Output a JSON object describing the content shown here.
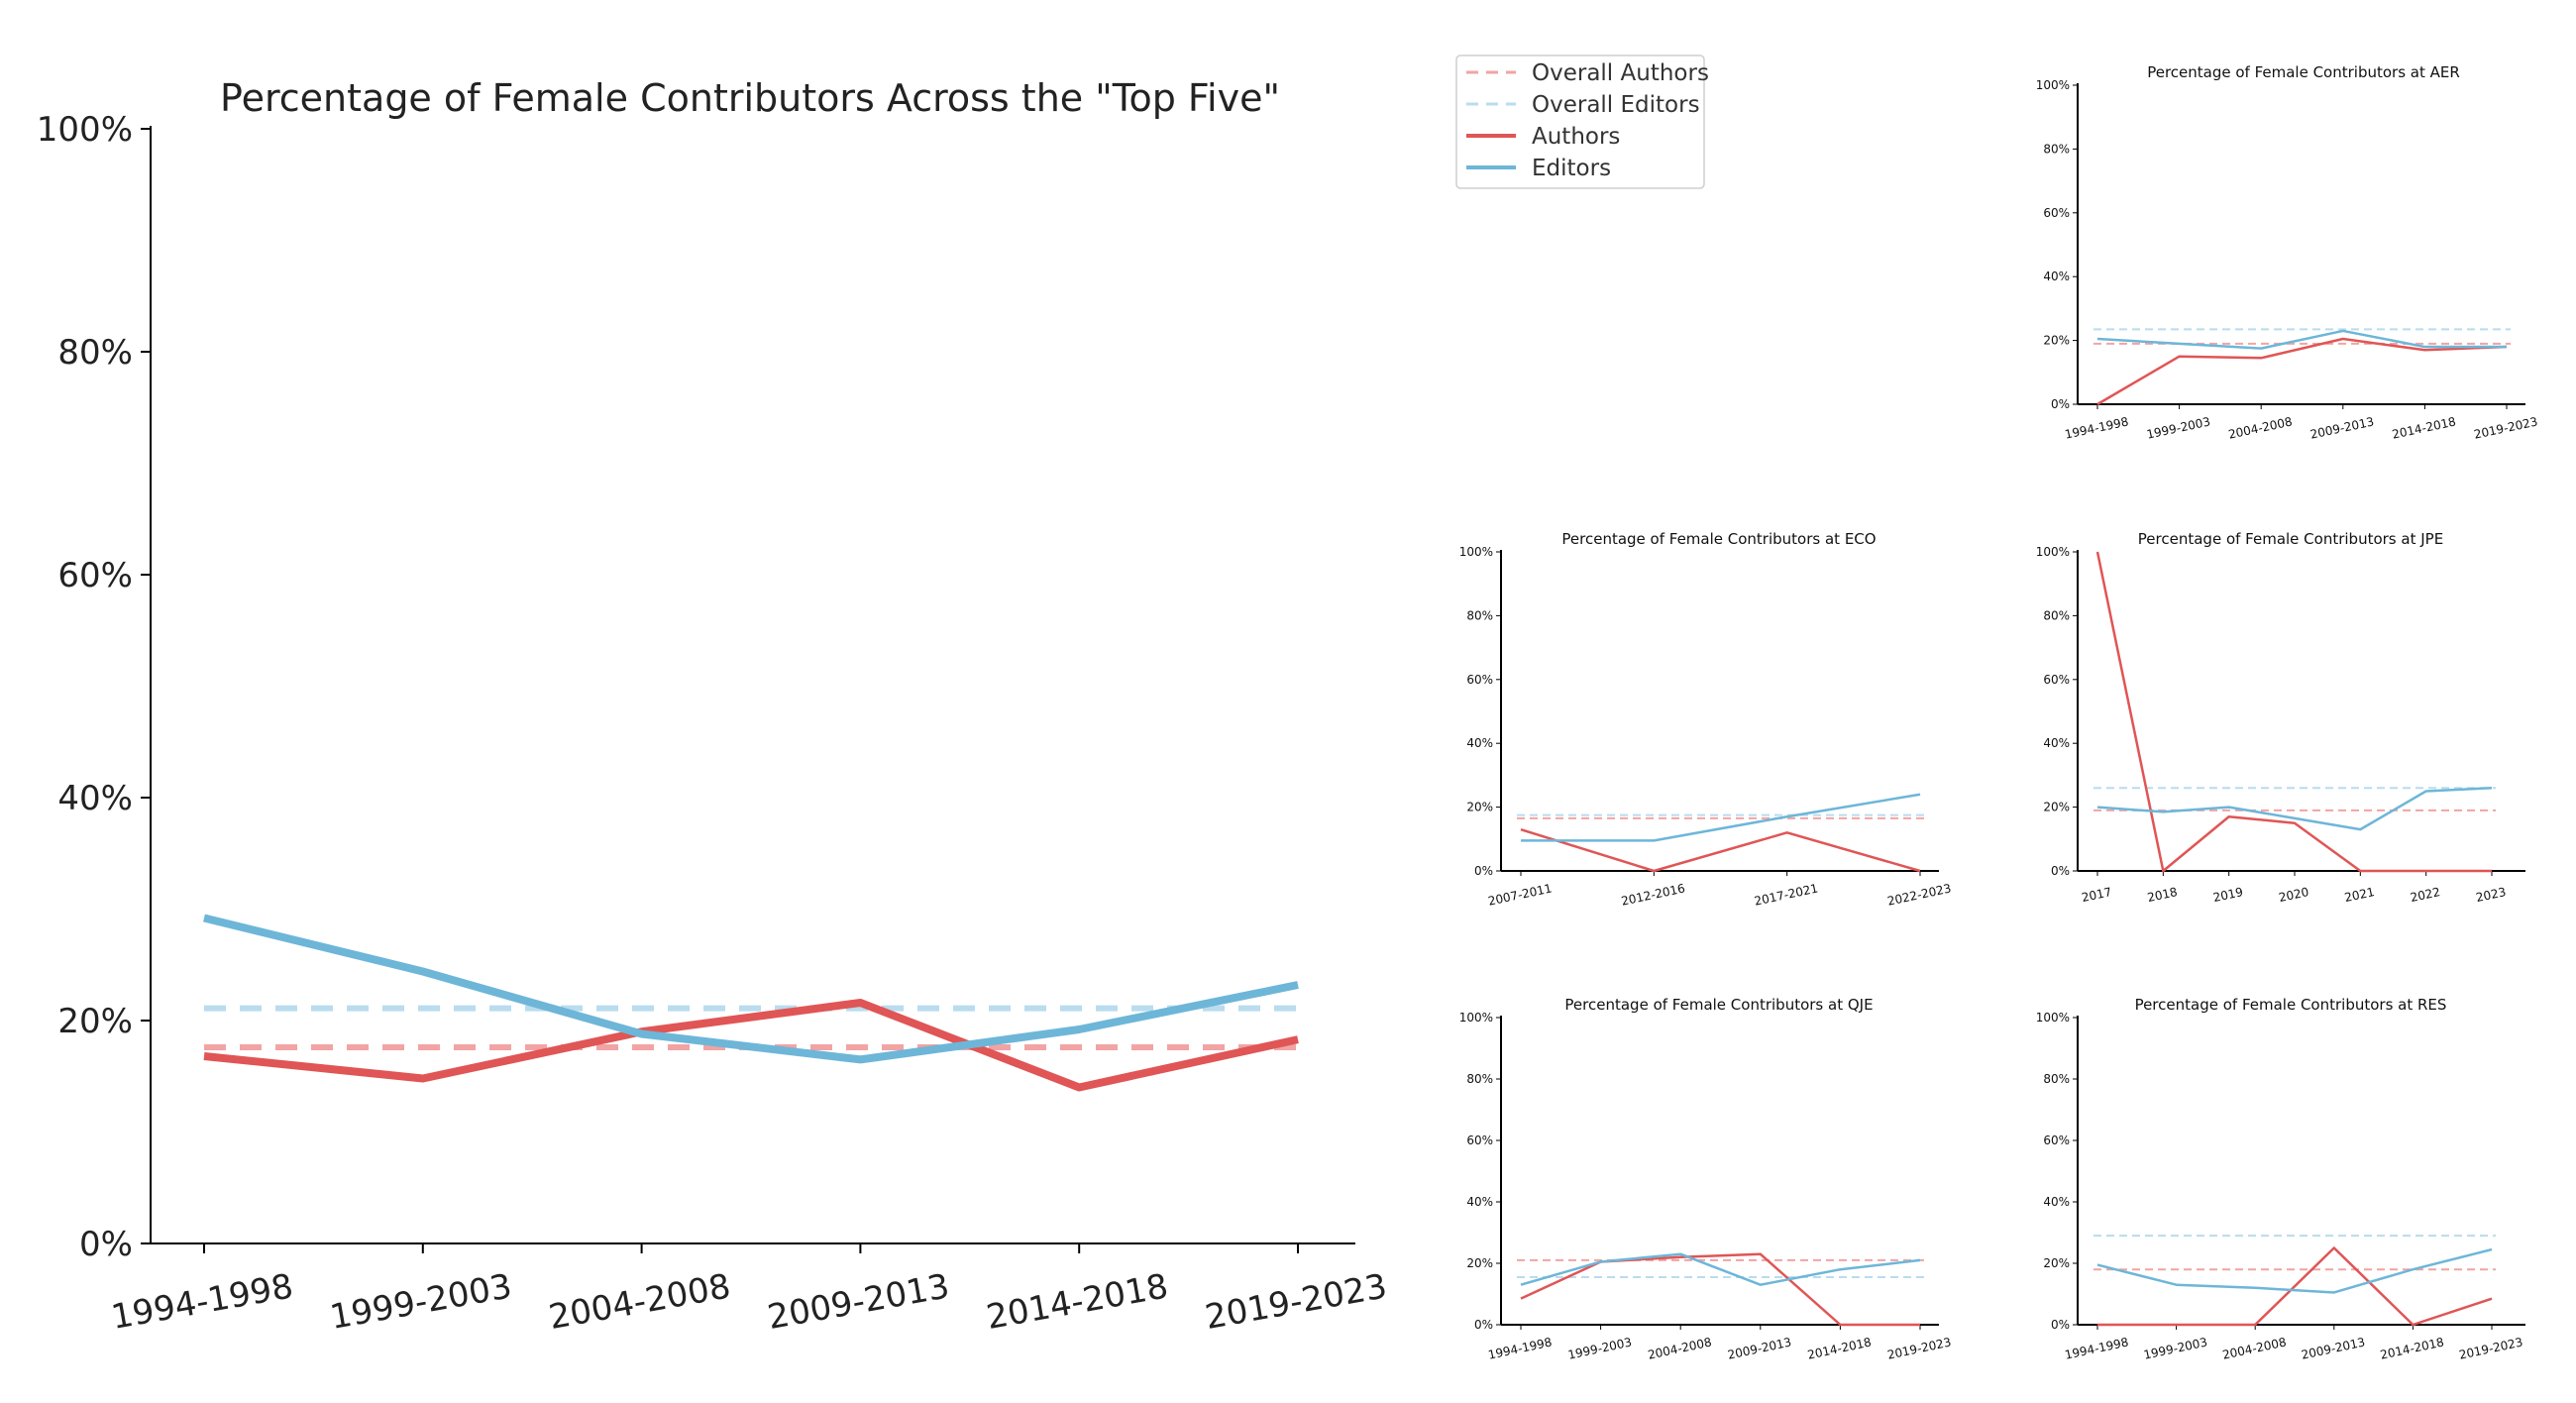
{
  "colors": {
    "authors": "#e05555",
    "editors": "#6db6d8",
    "overall_authors": "#f2a3a3",
    "overall_editors": "#b9dcee"
  },
  "legend": {
    "items": [
      {
        "label": "Overall Authors",
        "style": "dashed",
        "color_key": "overall_authors"
      },
      {
        "label": "Overall Editors",
        "style": "dashed",
        "color_key": "overall_editors"
      },
      {
        "label": "Authors",
        "style": "solid",
        "color_key": "authors"
      },
      {
        "label": "Editors",
        "style": "solid",
        "color_key": "editors"
      }
    ]
  },
  "chart_data": [
    {
      "id": "top5",
      "type": "line",
      "title": "Percentage of Female Contributors Across the \"Top Five\"",
      "categories": [
        "1994-1998",
        "1999-2003",
        "2004-2008",
        "2009-2013",
        "2014-2018",
        "2019-2023"
      ],
      "y_ticks": [
        "0%",
        "20%",
        "40%",
        "60%",
        "80%",
        "100%"
      ],
      "ylim": [
        0,
        100
      ],
      "series": [
        {
          "name": "Authors",
          "values": [
            16.8,
            14.8,
            19.0,
            21.6,
            14.0,
            18.3
          ]
        },
        {
          "name": "Editors",
          "values": [
            29.2,
            24.4,
            18.8,
            16.5,
            19.2,
            23.2
          ]
        }
      ],
      "overall": {
        "Overall Authors": 17.6,
        "Overall Editors": 21.1
      }
    },
    {
      "id": "aer",
      "type": "line",
      "title": "Percentage of Female Contributors at AER",
      "categories": [
        "1994-1998",
        "1999-2003",
        "2004-2008",
        "2009-2013",
        "2014-2018",
        "2019-2023"
      ],
      "y_ticks": [
        "0%",
        "20%",
        "40%",
        "60%",
        "80%",
        "100%"
      ],
      "ylim": [
        0,
        100
      ],
      "series": [
        {
          "name": "Authors",
          "values": [
            0,
            15,
            14.5,
            20.5,
            17,
            18
          ]
        },
        {
          "name": "Editors",
          "values": [
            20.5,
            19,
            17.5,
            23,
            18,
            18
          ]
        }
      ],
      "overall": {
        "Overall Authors": 19,
        "Overall Editors": 23.5
      }
    },
    {
      "id": "eco",
      "type": "line",
      "title": "Percentage of Female Contributors at ECO",
      "categories": [
        "2007-2011",
        "2012-2016",
        "2017-2021",
        "2022-2023"
      ],
      "y_ticks": [
        "0%",
        "20%",
        "40%",
        "60%",
        "80%",
        "100%"
      ],
      "ylim": [
        0,
        100
      ],
      "series": [
        {
          "name": "Authors",
          "values": [
            13,
            0,
            12,
            0
          ]
        },
        {
          "name": "Editors",
          "values": [
            9.5,
            9.5,
            17,
            24
          ]
        }
      ],
      "overall": {
        "Overall Authors": 16.5,
        "Overall Editors": 17.5
      }
    },
    {
      "id": "jpe",
      "type": "line",
      "title": "Percentage of Female Contributors at JPE",
      "categories": [
        "2017",
        "2018",
        "2019",
        "2020",
        "2021",
        "2022",
        "2023"
      ],
      "y_ticks": [
        "0%",
        "20%",
        "40%",
        "60%",
        "80%",
        "100%"
      ],
      "ylim": [
        0,
        100
      ],
      "series": [
        {
          "name": "Authors",
          "values": [
            100,
            0,
            17,
            15,
            0,
            0,
            0
          ]
        },
        {
          "name": "Editors",
          "values": [
            20,
            18.5,
            20,
            16.5,
            13,
            25,
            26
          ]
        }
      ],
      "overall": {
        "Overall Authors": 19,
        "Overall Editors": 26
      }
    },
    {
      "id": "qje",
      "type": "line",
      "title": "Percentage of Female Contributors at QJE",
      "categories": [
        "1994-1998",
        "1999-2003",
        "2004-2008",
        "2009-2013",
        "2014-2018",
        "2019-2023"
      ],
      "y_ticks": [
        "0%",
        "20%",
        "40%",
        "60%",
        "80%",
        "100%"
      ],
      "ylim": [
        0,
        100
      ],
      "series": [
        {
          "name": "Authors",
          "values": [
            8.5,
            20.5,
            22,
            23,
            0,
            0
          ]
        },
        {
          "name": "Editors",
          "values": [
            13,
            20.5,
            23,
            13,
            18,
            21
          ]
        }
      ],
      "overall": {
        "Overall Authors": 21,
        "Overall Editors": 15.5
      }
    },
    {
      "id": "res",
      "type": "line",
      "title": "Percentage of Female Contributors at RES",
      "categories": [
        "1994-1998",
        "1999-2003",
        "2004-2008",
        "2009-2013",
        "2014-2018",
        "2019-2023"
      ],
      "y_ticks": [
        "0%",
        "20%",
        "40%",
        "60%",
        "80%",
        "100%"
      ],
      "ylim": [
        0,
        100
      ],
      "series": [
        {
          "name": "Authors",
          "values": [
            0,
            0,
            0,
            25,
            0,
            8.5
          ]
        },
        {
          "name": "Editors",
          "values": [
            19.5,
            13,
            12,
            10.5,
            18,
            24.5
          ]
        }
      ],
      "overall": {
        "Overall Authors": 18,
        "Overall Editors": 29
      }
    }
  ]
}
